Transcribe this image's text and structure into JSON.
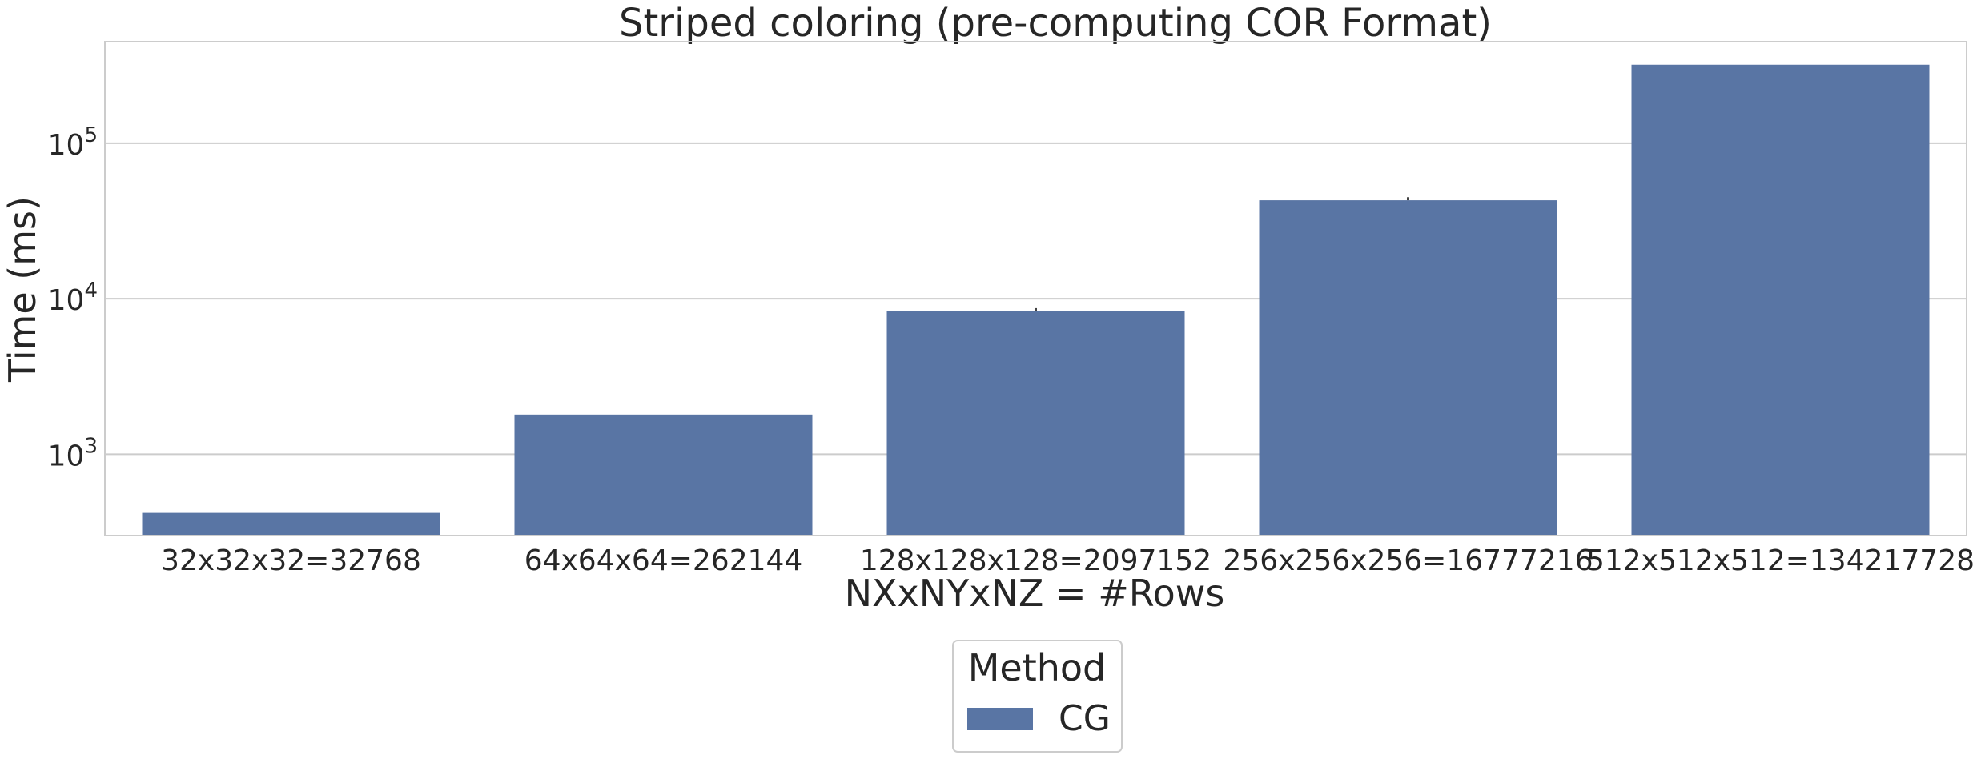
{
  "chart_data": {
    "type": "bar",
    "title": "Striped coloring (pre-computing COR Format)",
    "xlabel": "NXxNYxNZ = #Rows",
    "ylabel": "Time (ms)",
    "yscale": "log",
    "ylim": [
      300,
      450000
    ],
    "yticks": [
      {
        "value": 1000,
        "base": "10",
        "exp": "3"
      },
      {
        "value": 10000,
        "base": "10",
        "exp": "4"
      },
      {
        "value": 100000,
        "base": "10",
        "exp": "5"
      }
    ],
    "grid": true,
    "categories": [
      "32x32x32=32768",
      "64x64x64=262144",
      "128x128x128=2097152",
      "256x256x256=16777216",
      "512x512x512=134217728"
    ],
    "series": [
      {
        "name": "CG",
        "color": "#5975a4",
        "values": [
          420,
          1800,
          8300,
          43000,
          320000
        ],
        "error_high": [
          420,
          1800,
          8700,
          45000,
          320000
        ]
      }
    ],
    "legend": {
      "title": "Method",
      "placement": "bottom-center"
    }
  }
}
